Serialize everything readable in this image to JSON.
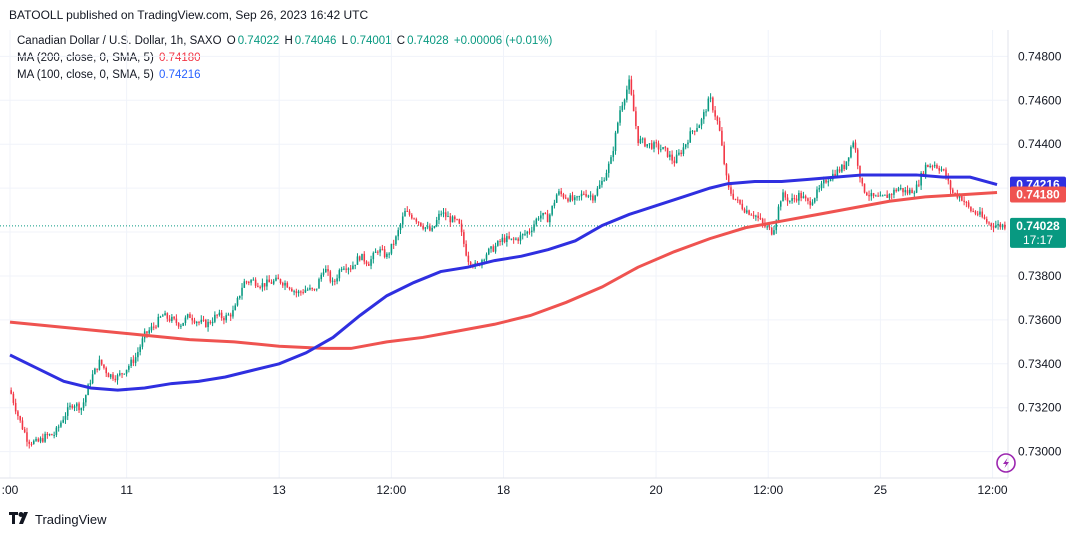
{
  "header": {
    "publisher": "BATOOLL published on TradingView.com, Sep 26, 2023 16:42 UTC"
  },
  "legend": {
    "symbol": "Canadian Dollar / U.S. Dollar, 1h, SAXO",
    "o_label": "O",
    "o_value": "0.74022",
    "h_label": "H",
    "h_value": "0.74046",
    "l_label": "L",
    "l_value": "0.74001",
    "c_label": "C",
    "c_value": "0.74028",
    "change": "+0.00006 (+0.01%)",
    "ma200_label": "MA (200, close, 0, SMA, 5)",
    "ma200_value": "0.74180",
    "ma100_label": "MA (100, close, 0, SMA, 5)",
    "ma100_value": "0.74216"
  },
  "price_badges": {
    "ma100": "0.74216",
    "ma200": "0.74180",
    "last": "0.74028",
    "countdown": "17:17"
  },
  "footer": {
    "brand": "TradingView"
  },
  "colors": {
    "up": "#089981",
    "down": "#f23645",
    "ma100": "#2f2fe0",
    "ma200": "#ef5350"
  },
  "chart_data": {
    "type": "candlestick",
    "y_ticks": [
      "0.74800",
      "0.74600",
      "0.74400",
      "0.74200",
      "0.74000",
      "0.73800",
      "0.73600",
      "0.73400",
      "0.73200",
      "0.73000"
    ],
    "ylim": [
      0.7288,
      0.7492
    ],
    "x_ticks": [
      {
        "label": ":00",
        "x": 0.0
      },
      {
        "label": "11",
        "x": 13.0
      },
      {
        "label": "13",
        "x": 30.0
      },
      {
        "label": "12:00",
        "x": 42.5
      },
      {
        "label": "18",
        "x": 55.0
      },
      {
        "label": "20",
        "x": 72.0
      },
      {
        "label": "12:00",
        "x": 84.5
      },
      {
        "label": "25",
        "x": 97.0
      },
      {
        "label": "12:00",
        "x": 109.5
      }
    ],
    "xlim": [
      0,
      111
    ],
    "price_path": [
      [
        0,
        0.7328
      ],
      [
        1,
        0.7315
      ],
      [
        2,
        0.7305
      ],
      [
        3,
        0.7304
      ],
      [
        4,
        0.7307
      ],
      [
        5,
        0.7308
      ],
      [
        6,
        0.7316
      ],
      [
        7,
        0.7322
      ],
      [
        8,
        0.732
      ],
      [
        9,
        0.7333
      ],
      [
        10,
        0.7341
      ],
      [
        11,
        0.7335
      ],
      [
        12,
        0.7334
      ],
      [
        13,
        0.7338
      ],
      [
        14,
        0.7343
      ],
      [
        15,
        0.7353
      ],
      [
        16,
        0.7357
      ],
      [
        17,
        0.7362
      ],
      [
        18,
        0.736
      ],
      [
        19,
        0.7358
      ],
      [
        20,
        0.7362
      ],
      [
        21,
        0.7359
      ],
      [
        22,
        0.7358
      ],
      [
        23,
        0.7362
      ],
      [
        24,
        0.7361
      ],
      [
        25,
        0.7364
      ],
      [
        26,
        0.7377
      ],
      [
        27,
        0.7378
      ],
      [
        28,
        0.7376
      ],
      [
        29,
        0.7377
      ],
      [
        30,
        0.7378
      ],
      [
        31,
        0.7376
      ],
      [
        32,
        0.7372
      ],
      [
        33,
        0.7374
      ],
      [
        34,
        0.7373
      ],
      [
        35,
        0.7384
      ],
      [
        36,
        0.7376
      ],
      [
        37,
        0.7385
      ],
      [
        38,
        0.7384
      ],
      [
        39,
        0.7389
      ],
      [
        40,
        0.7386
      ],
      [
        41,
        0.7392
      ],
      [
        42,
        0.7389
      ],
      [
        43,
        0.7397
      ],
      [
        44,
        0.7409
      ],
      [
        45,
        0.7407
      ],
      [
        46,
        0.7403
      ],
      [
        47,
        0.74
      ],
      [
        48,
        0.7409
      ],
      [
        49,
        0.7406
      ],
      [
        50,
        0.7404
      ],
      [
        51,
        0.7388
      ],
      [
        52,
        0.7384
      ],
      [
        53,
        0.739
      ],
      [
        54,
        0.7393
      ],
      [
        55,
        0.7397
      ],
      [
        56,
        0.7396
      ],
      [
        57,
        0.7398
      ],
      [
        58,
        0.7401
      ],
      [
        59,
        0.7408
      ],
      [
        60,
        0.7406
      ],
      [
        61,
        0.7418
      ],
      [
        62,
        0.7416
      ],
      [
        63,
        0.7414
      ],
      [
        64,
        0.7418
      ],
      [
        65,
        0.7416
      ],
      [
        66,
        0.7423
      ],
      [
        67,
        0.7433
      ],
      [
        68,
        0.7456
      ],
      [
        69,
        0.7468
      ],
      [
        70,
        0.7442
      ],
      [
        71,
        0.744
      ],
      [
        72,
        0.7439
      ],
      [
        73,
        0.7437
      ],
      [
        74,
        0.7432
      ],
      [
        75,
        0.7438
      ],
      [
        76,
        0.7446
      ],
      [
        77,
        0.745
      ],
      [
        78,
        0.7461
      ],
      [
        79,
        0.7448
      ],
      [
        80,
        0.742
      ],
      [
        81,
        0.7414
      ],
      [
        82,
        0.741
      ],
      [
        83,
        0.7408
      ],
      [
        84,
        0.7403
      ],
      [
        85,
        0.74
      ],
      [
        86,
        0.7417
      ],
      [
        87,
        0.7414
      ],
      [
        88,
        0.7417
      ],
      [
        89,
        0.7413
      ],
      [
        90,
        0.7418
      ],
      [
        91,
        0.7424
      ],
      [
        92,
        0.7427
      ],
      [
        93,
        0.743
      ],
      [
        94,
        0.7442
      ],
      [
        95,
        0.742
      ],
      [
        96,
        0.7416
      ],
      [
        97,
        0.7415
      ],
      [
        98,
        0.7417
      ],
      [
        99,
        0.742
      ],
      [
        100,
        0.7418
      ],
      [
        101,
        0.742
      ],
      [
        102,
        0.743
      ],
      [
        103,
        0.7431
      ],
      [
        104,
        0.7428
      ],
      [
        105,
        0.7418
      ],
      [
        106,
        0.7416
      ],
      [
        107,
        0.741
      ],
      [
        108,
        0.7408
      ],
      [
        109,
        0.7404
      ],
      [
        110,
        0.7403
      ]
    ],
    "ma100": [
      [
        0,
        0.7344
      ],
      [
        3,
        0.7338
      ],
      [
        6,
        0.7332
      ],
      [
        9,
        0.7329
      ],
      [
        12,
        0.7328
      ],
      [
        15,
        0.7329
      ],
      [
        18,
        0.7331
      ],
      [
        21,
        0.7332
      ],
      [
        24,
        0.7334
      ],
      [
        27,
        0.7337
      ],
      [
        30,
        0.734
      ],
      [
        33,
        0.7345
      ],
      [
        36,
        0.7352
      ],
      [
        39,
        0.7362
      ],
      [
        42,
        0.7371
      ],
      [
        45,
        0.7377
      ],
      [
        48,
        0.7382
      ],
      [
        51,
        0.7384
      ],
      [
        54,
        0.7387
      ],
      [
        57,
        0.7389
      ],
      [
        60,
        0.7392
      ],
      [
        63,
        0.7396
      ],
      [
        66,
        0.7403
      ],
      [
        69,
        0.7408
      ],
      [
        72,
        0.7412
      ],
      [
        75,
        0.7416
      ],
      [
        78,
        0.742
      ],
      [
        80,
        0.7422
      ],
      [
        83,
        0.7423
      ],
      [
        86,
        0.7423
      ],
      [
        89,
        0.7424
      ],
      [
        92,
        0.7425
      ],
      [
        95,
        0.7426
      ],
      [
        98,
        0.7426
      ],
      [
        101,
        0.7426
      ],
      [
        104,
        0.7425
      ],
      [
        107,
        0.7425
      ],
      [
        110,
        0.74216
      ]
    ],
    "ma200": [
      [
        0,
        0.7359
      ],
      [
        5,
        0.7357
      ],
      [
        10,
        0.7355
      ],
      [
        15,
        0.7353
      ],
      [
        20,
        0.7351
      ],
      [
        25,
        0.735
      ],
      [
        30,
        0.7348
      ],
      [
        35,
        0.7347
      ],
      [
        38,
        0.7347
      ],
      [
        42,
        0.735
      ],
      [
        46,
        0.7352
      ],
      [
        50,
        0.7355
      ],
      [
        54,
        0.7358
      ],
      [
        58,
        0.7362
      ],
      [
        62,
        0.7368
      ],
      [
        66,
        0.7375
      ],
      [
        70,
        0.7384
      ],
      [
        74,
        0.7391
      ],
      [
        78,
        0.7397
      ],
      [
        82,
        0.7402
      ],
      [
        86,
        0.7405
      ],
      [
        90,
        0.7408
      ],
      [
        94,
        0.7411
      ],
      [
        98,
        0.7414
      ],
      [
        102,
        0.7416
      ],
      [
        106,
        0.7417
      ],
      [
        110,
        0.7418
      ]
    ]
  }
}
